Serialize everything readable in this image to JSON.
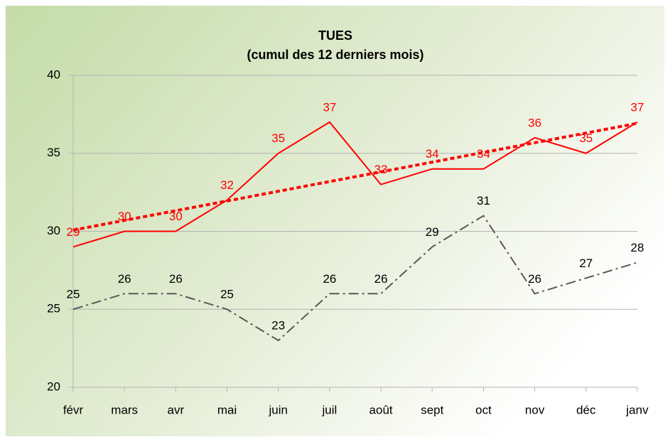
{
  "chart_data": {
    "type": "line",
    "title": [
      "TUES",
      "(cumul des 12 derniers mois)"
    ],
    "categories": [
      "févr",
      "mars",
      "avr",
      "mai",
      "juin",
      "juil",
      "août",
      "sept",
      "oct",
      "nov",
      "déc",
      "janv"
    ],
    "series": [
      {
        "color": "#ff0000",
        "dash": "solid",
        "trendline": true,
        "values": [
          29,
          30,
          30,
          32,
          35,
          37,
          33,
          34,
          34,
          36,
          35,
          37
        ]
      },
      {
        "color": "#595959",
        "dash": "dashdot",
        "values": [
          25,
          26,
          26,
          25,
          23,
          26,
          26,
          29,
          31,
          26,
          27,
          28
        ]
      }
    ],
    "ylim": [
      20,
      40
    ],
    "yticks": [
      20,
      25,
      30,
      35,
      40
    ],
    "grid": true
  }
}
